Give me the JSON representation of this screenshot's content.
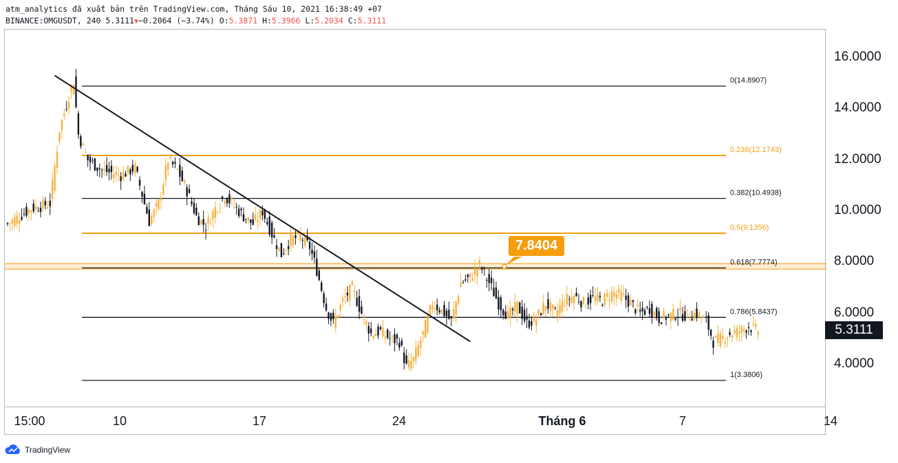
{
  "header": {
    "line1": "atm_analytics đã xuất bản trên TradingView.com, Tháng Sáu 10, 2021 16:38:49 +07",
    "symbol": "BINANCE:OMGUSDT, 240",
    "last": "5.3111",
    "change": "−0.2064 (−3.74%)",
    "o_label": "O:",
    "o_val": "5.3871",
    "h_label": "H:",
    "h_val": "5.3966",
    "l_label": "L:",
    "l_val": "5.2034",
    "c_label": "C:",
    "c_val": "5.3111"
  },
  "colors": {
    "up": "#f5b13d",
    "down": "#131722",
    "fib_dark": "#131722",
    "fib_orange": "#f59d0d",
    "trendline": "#131722",
    "highlight_band": "#f59d0d"
  },
  "chart_data": {
    "type": "candlestick",
    "ylim": [
      2.3,
      17.1
    ],
    "price_ticks": [
      "16.0000",
      "14.0000",
      "12.0000",
      "10.0000",
      "8.0000",
      "6.0000",
      "4.0000"
    ],
    "time_ticks": [
      "15:00",
      "10",
      "17",
      "24",
      "Tháng 6",
      "7",
      "14"
    ],
    "last_price": "5.3111",
    "fib_levels": [
      {
        "label": "0(14.8907)",
        "value": 14.8907,
        "color": "dark"
      },
      {
        "label": "0.236(12.1743)",
        "value": 12.1743,
        "color": "orange"
      },
      {
        "label": "0.382(10.4938)",
        "value": 10.4938,
        "color": "dark"
      },
      {
        "label": "0.5(9.1356)",
        "value": 9.1356,
        "color": "orange"
      },
      {
        "label": "0.618(7.7774)",
        "value": 7.7774,
        "color": "dark"
      },
      {
        "label": "0.786(5.8437)",
        "value": 5.8437,
        "color": "dark"
      },
      {
        "label": "1(3.3806)",
        "value": 3.3806,
        "color": "dark"
      }
    ],
    "highlight_level": {
      "value": 7.8404,
      "label": "7.8404"
    },
    "trendline": {
      "from": {
        "bar": 20,
        "price": 15.3
      },
      "to": {
        "bar": 196,
        "price": 4.9
      }
    },
    "candles_anchor": [
      [
        0,
        9.5
      ],
      [
        10,
        10.1
      ],
      [
        18,
        10.3
      ],
      [
        22,
        13.2
      ],
      [
        26,
        14.5
      ],
      [
        28,
        15.1
      ],
      [
        30,
        13.0
      ],
      [
        34,
        12.0
      ],
      [
        40,
        11.6
      ],
      [
        48,
        11.4
      ],
      [
        54,
        11.7
      ],
      [
        56,
        11.0
      ],
      [
        60,
        9.6
      ],
      [
        64,
        10.3
      ],
      [
        68,
        12.0
      ],
      [
        72,
        11.6
      ],
      [
        76,
        10.8
      ],
      [
        80,
        9.8
      ],
      [
        84,
        9.4
      ],
      [
        88,
        10.1
      ],
      [
        92,
        10.6
      ],
      [
        96,
        10.2
      ],
      [
        100,
        9.8
      ],
      [
        104,
        9.5
      ],
      [
        108,
        10.0
      ],
      [
        112,
        9.1
      ],
      [
        116,
        8.3
      ],
      [
        120,
        8.9
      ],
      [
        124,
        9.0
      ],
      [
        128,
        8.6
      ],
      [
        131,
        7.7
      ],
      [
        135,
        6.2
      ],
      [
        138,
        5.6
      ],
      [
        142,
        6.5
      ],
      [
        146,
        7.0
      ],
      [
        150,
        6.0
      ],
      [
        154,
        5.2
      ],
      [
        158,
        5.3
      ],
      [
        162,
        5.0
      ],
      [
        166,
        4.9
      ],
      [
        169,
        3.9
      ],
      [
        172,
        4.2
      ],
      [
        176,
        5.2
      ],
      [
        180,
        6.4
      ],
      [
        184,
        6.1
      ],
      [
        188,
        5.7
      ],
      [
        192,
        7.2
      ],
      [
        196,
        7.4
      ],
      [
        200,
        7.9
      ],
      [
        204,
        7.2
      ],
      [
        208,
        6.4
      ],
      [
        212,
        5.9
      ],
      [
        216,
        6.3
      ],
      [
        220,
        5.6
      ],
      [
        224,
        5.8
      ],
      [
        228,
        6.4
      ],
      [
        232,
        6.0
      ],
      [
        236,
        6.5
      ],
      [
        240,
        6.7
      ],
      [
        244,
        6.4
      ],
      [
        248,
        6.6
      ],
      [
        252,
        6.5
      ],
      [
        256,
        6.8
      ],
      [
        260,
        6.7
      ],
      [
        264,
        6.4
      ],
      [
        268,
        6.0
      ],
      [
        272,
        6.2
      ],
      [
        276,
        5.8
      ],
      [
        280,
        5.9
      ],
      [
        284,
        6.0
      ],
      [
        288,
        5.9
      ],
      [
        292,
        6.0
      ],
      [
        296,
        5.7
      ],
      [
        299,
        4.9
      ],
      [
        302,
        5.0
      ],
      [
        306,
        5.2
      ],
      [
        310,
        5.3
      ],
      [
        314,
        5.5
      ],
      [
        318,
        5.3
      ]
    ]
  }
}
